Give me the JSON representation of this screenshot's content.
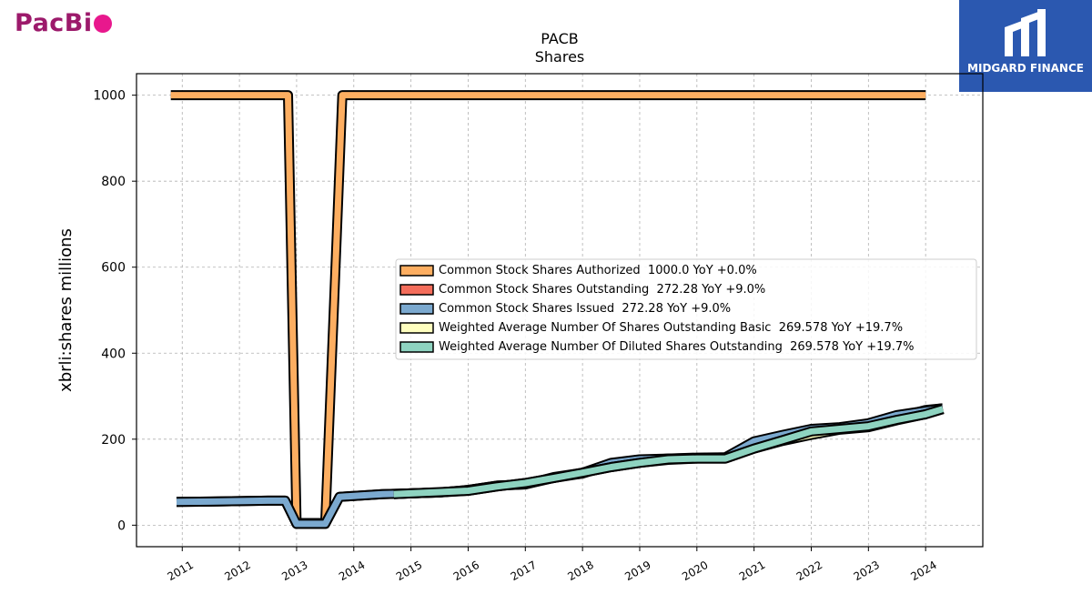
{
  "brand": {
    "name_part": "PacBi",
    "dot_color": "#e8188d",
    "text_color": "#9c1a6b"
  },
  "watermark": {
    "label": "MIDGARD FINANCE",
    "bg_color": "#2b58b0",
    "icon": "midgard-logo-icon"
  },
  "chart_data": {
    "type": "line",
    "title": "PACB",
    "subtitle": "Shares",
    "xlabel": "",
    "ylabel": "xbrli:shares millions",
    "ylim": [
      -50,
      1050
    ],
    "xlim": [
      2010.2,
      2025.0
    ],
    "yticks": [
      0,
      200,
      400,
      600,
      800,
      1000
    ],
    "xticks": [
      "2011",
      "2012",
      "2013",
      "2014",
      "2015",
      "2016",
      "2017",
      "2018",
      "2019",
      "2020",
      "2021",
      "2022",
      "2023",
      "2024"
    ],
    "grid": true,
    "legend_position": "center-right",
    "series": [
      {
        "name": "Common Stock Shares Authorized",
        "legend": "Common Stock Shares Authorized  1000.0 YoY +0.0%",
        "color": "#fdae61",
        "x": [
          2010.8,
          2012.7,
          2012.85,
          2013.0,
          2013.5,
          2013.65,
          2013.8,
          2024.0
        ],
        "y": [
          1000,
          1000,
          1000,
          5,
          5,
          500,
          1000,
          1000
        ]
      },
      {
        "name": "Common Stock Shares Outstanding",
        "legend": "Common Stock Shares Outstanding  272.28 YoY +9.0%",
        "color": "#f46d5b",
        "x": [
          2010.9,
          2011.5,
          2012.0,
          2012.5,
          2012.8,
          2013.0,
          2013.5,
          2013.75,
          2014.0,
          2014.5,
          2015.0,
          2015.5,
          2016.0,
          2016.5,
          2017.0,
          2017.5,
          2018.0,
          2018.5,
          2019.0,
          2019.5,
          2020.0,
          2020.5,
          2021.0,
          2021.5,
          2022.0,
          2022.5,
          2023.0,
          2023.5,
          2024.0,
          2024.3
        ],
        "y": [
          54,
          55,
          56,
          57,
          57,
          3,
          3,
          66,
          68,
          72,
          74,
          76,
          82,
          92,
          95,
          110,
          120,
          140,
          150,
          155,
          157,
          158,
          190,
          205,
          222,
          226,
          235,
          250,
          268,
          272
        ]
      },
      {
        "name": "Common Stock Shares Issued",
        "legend": "Common Stock Shares Issued  272.28 YoY +9.0%",
        "color": "#7ba9cf",
        "x": [
          2010.9,
          2011.5,
          2012.0,
          2012.5,
          2012.8,
          2013.0,
          2013.5,
          2013.75,
          2014.0,
          2014.5,
          2015.0,
          2015.5,
          2016.0,
          2016.5,
          2017.0,
          2017.5,
          2018.0,
          2018.5,
          2019.0,
          2019.5,
          2020.0,
          2020.5,
          2021.0,
          2021.5,
          2022.0,
          2022.5,
          2023.0,
          2023.5,
          2024.0,
          2024.3
        ],
        "y": [
          54,
          55,
          56,
          57,
          57,
          3,
          3,
          66,
          68,
          72,
          74,
          76,
          82,
          92,
          95,
          112,
          122,
          145,
          153,
          155,
          156,
          158,
          195,
          210,
          224,
          228,
          237,
          256,
          266,
          272
        ]
      },
      {
        "name": "Weighted Average Number Of Shares Outstanding Basic",
        "legend": "Weighted Average Number Of Shares Outstanding Basic  269.578 YoY +19.7%",
        "color": "#ffffbf",
        "x": [
          2014.7,
          2015.0,
          2015.5,
          2016.0,
          2016.5,
          2017.0,
          2017.5,
          2018.0,
          2018.5,
          2019.0,
          2019.5,
          2020.0,
          2020.5,
          2021.0,
          2021.5,
          2022.0,
          2022.5,
          2023.0,
          2023.5,
          2024.0,
          2024.3
        ],
        "y": [
          72,
          74,
          76,
          80,
          90,
          98,
          110,
          122,
          135,
          145,
          152,
          155,
          155,
          178,
          196,
          210,
          222,
          228,
          244,
          258,
          270
        ]
      },
      {
        "name": "Weighted Average Number Of Diluted Shares Outstanding",
        "legend": "Weighted Average Number Of Diluted Shares Outstanding  269.578 YoY +19.7%",
        "color": "#8ed3c0",
        "x": [
          2014.7,
          2015.0,
          2015.5,
          2016.0,
          2016.5,
          2017.0,
          2017.5,
          2018.0,
          2018.5,
          2019.0,
          2019.5,
          2020.0,
          2020.5,
          2021.0,
          2021.5,
          2022.0,
          2022.5,
          2023.0,
          2023.5,
          2024.0,
          2024.3
        ],
        "y": [
          72,
          74,
          77,
          80,
          90,
          98,
          110,
          122,
          135,
          145,
          153,
          155,
          155,
          178,
          198,
          218,
          224,
          230,
          245,
          258,
          270
        ]
      }
    ]
  }
}
